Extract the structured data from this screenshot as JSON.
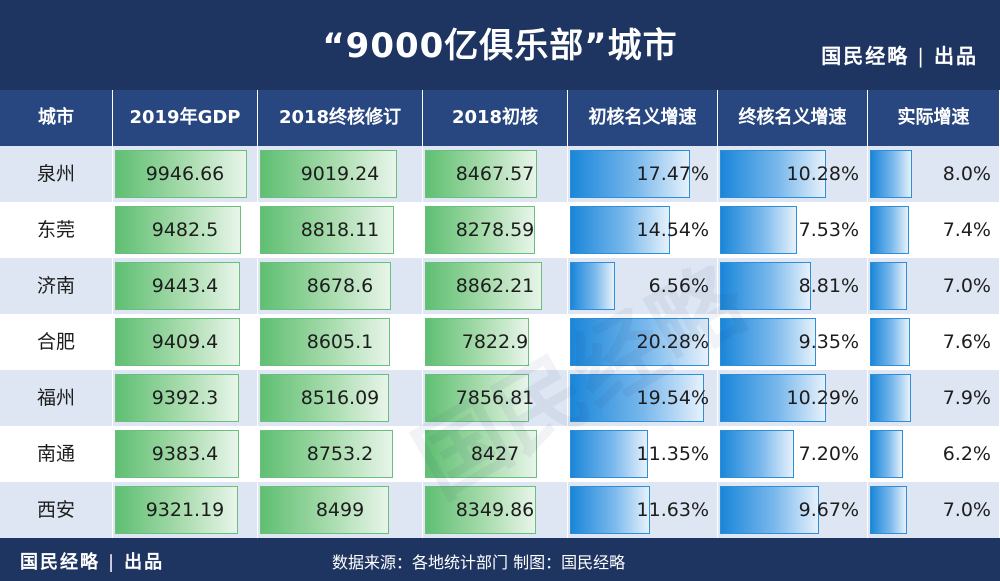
{
  "header": {
    "title": "“9000亿俱乐部”城市",
    "brand": "国民经略",
    "brand_sep": "|",
    "brand_suffix": "出品"
  },
  "footer": {
    "brand": "国民经略",
    "brand_sep": "|",
    "brand_suffix": "出品",
    "source": "数据来源：各地统计部门 制图：国民经略"
  },
  "colors": {
    "header_bg": "#1e3461",
    "table_header_bg": "#28467f",
    "green_bar": "#5fbf72",
    "blue_bar": "#1a86d9",
    "row_alt": "#dde6f2"
  },
  "chart_data": {
    "type": "table",
    "title": "“9000亿俱乐部”城市",
    "columns": [
      "城市",
      "2019年GDP",
      "2018终核修订",
      "2018初核",
      "初核名义增速",
      "终核名义增速",
      "实际增速"
    ],
    "rows": [
      [
        "泉州",
        "9946.66",
        "9019.24",
        "8467.57",
        "17.47%",
        "10.28%",
        "8.0%"
      ],
      [
        "东莞",
        "9482.5",
        "8818.11",
        "8278.59",
        "14.54%",
        "7.53%",
        "7.4%"
      ],
      [
        "济南",
        "9443.4",
        "8678.6",
        "8862.21",
        "6.56%",
        "8.81%",
        "7.0%"
      ],
      [
        "合肥",
        "9409.4",
        "8605.1",
        "7822.9",
        "20.28%",
        "9.35%",
        "7.6%"
      ],
      [
        "福州",
        "9392.3",
        "8516.09",
        "7856.81",
        "19.54%",
        "10.29%",
        "7.9%"
      ],
      [
        "南通",
        "9383.4",
        "8753.2",
        "8427",
        "11.35%",
        "7.20%",
        "6.2%"
      ],
      [
        "西安",
        "9321.19",
        "8499",
        "8349.86",
        "11.63%",
        "9.67%",
        "7.0%"
      ]
    ],
    "bar_values": {
      "gdp_2019": [
        9946.66,
        9482.5,
        9443.4,
        9409.4,
        9392.3,
        9383.4,
        9321.19
      ],
      "final_2018": [
        9019.24,
        8818.11,
        8678.6,
        8605.1,
        8516.09,
        8753.2,
        8499
      ],
      "initial_2018": [
        8467.57,
        8278.59,
        8862.21,
        7822.9,
        7856.81,
        8427,
        8349.86
      ],
      "initial_nominal_growth": [
        17.47,
        14.54,
        6.56,
        20.28,
        19.54,
        11.35,
        11.63
      ],
      "final_nominal_growth": [
        10.28,
        7.53,
        8.81,
        9.35,
        10.29,
        7.2,
        9.67
      ],
      "real_growth": [
        8.0,
        7.4,
        7.0,
        7.6,
        7.9,
        6.2,
        7.0
      ]
    },
    "bar_max": {
      "gdp": 10500,
      "initial_growth": 21,
      "final_growth": 14,
      "real_growth": 24
    }
  }
}
